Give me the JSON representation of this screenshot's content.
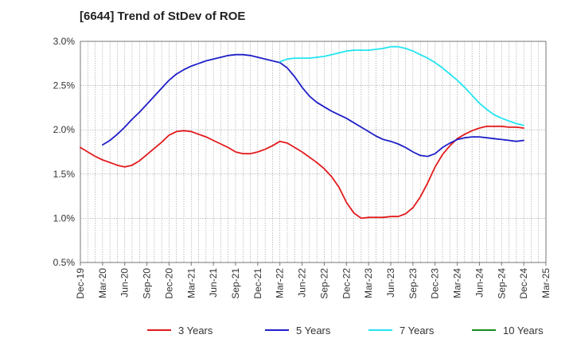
{
  "chart_data": {
    "type": "line",
    "title": "[6644]  Trend of StDev of ROE",
    "xlabel": "",
    "ylabel": "",
    "ylim": [
      0.005,
      0.03
    ],
    "y_ticks": [
      "0.5%",
      "1.0%",
      "1.5%",
      "2.0%",
      "2.5%",
      "3.0%"
    ],
    "x_range": [
      "Dec-19",
      "Mar-25"
    ],
    "x_ticks": [
      "Dec-19",
      "Mar-20",
      "Jun-20",
      "Sep-20",
      "Dec-20",
      "Mar-21",
      "Jun-21",
      "Sep-21",
      "Dec-21",
      "Mar-22",
      "Jun-22",
      "Sep-22",
      "Dec-22",
      "Mar-23",
      "Jun-23",
      "Sep-23",
      "Dec-23",
      "Mar-24",
      "Jun-24",
      "Sep-24",
      "Dec-24",
      "Mar-25"
    ],
    "grid": true,
    "legend_position": "bottom",
    "series": [
      {
        "name": "3 Years",
        "color": "#e31a1c",
        "points": [
          [
            "Dec-19",
            0.018
          ],
          [
            "Jan-20",
            0.0175
          ],
          [
            "Feb-20",
            0.017
          ],
          [
            "Mar-20",
            0.0166
          ],
          [
            "Apr-20",
            0.0163
          ],
          [
            "May-20",
            0.016
          ],
          [
            "Jun-20",
            0.0158
          ],
          [
            "Jul-20",
            0.016
          ],
          [
            "Aug-20",
            0.0165
          ],
          [
            "Sep-20",
            0.0172
          ],
          [
            "Oct-20",
            0.0179
          ],
          [
            "Nov-20",
            0.0186
          ],
          [
            "Dec-20",
            0.0194
          ],
          [
            "Jan-21",
            0.0198
          ],
          [
            "Feb-21",
            0.0199
          ],
          [
            "Mar-21",
            0.0198
          ],
          [
            "Apr-21",
            0.0195
          ],
          [
            "May-21",
            0.0192
          ],
          [
            "Jun-21",
            0.0188
          ],
          [
            "Jul-21",
            0.0184
          ],
          [
            "Aug-21",
            0.018
          ],
          [
            "Sep-21",
            0.0175
          ],
          [
            "Oct-21",
            0.0173
          ],
          [
            "Nov-21",
            0.0173
          ],
          [
            "Dec-21",
            0.0175
          ],
          [
            "Jan-22",
            0.0178
          ],
          [
            "Feb-22",
            0.0182
          ],
          [
            "Mar-22",
            0.0187
          ],
          [
            "Apr-22",
            0.0185
          ],
          [
            "May-22",
            0.018
          ],
          [
            "Jun-22",
            0.0175
          ],
          [
            "Jul-22",
            0.0169
          ],
          [
            "Aug-22",
            0.0163
          ],
          [
            "Sep-22",
            0.0156
          ],
          [
            "Oct-22",
            0.0147
          ],
          [
            "Nov-22",
            0.0135
          ],
          [
            "Dec-22",
            0.0118
          ],
          [
            "Jan-23",
            0.0106
          ],
          [
            "Feb-23",
            0.01
          ],
          [
            "Mar-23",
            0.0101
          ],
          [
            "Apr-23",
            0.0101
          ],
          [
            "May-23",
            0.0101
          ],
          [
            "Jun-23",
            0.0102
          ],
          [
            "Jul-23",
            0.0102
          ],
          [
            "Aug-23",
            0.0105
          ],
          [
            "Sep-23",
            0.0112
          ],
          [
            "Oct-23",
            0.0124
          ],
          [
            "Nov-23",
            0.014
          ],
          [
            "Dec-23",
            0.0158
          ],
          [
            "Jan-24",
            0.0172
          ],
          [
            "Feb-24",
            0.0182
          ],
          [
            "Mar-24",
            0.019
          ],
          [
            "Apr-24",
            0.0195
          ],
          [
            "May-24",
            0.0199
          ],
          [
            "Jun-24",
            0.0202
          ],
          [
            "Jul-24",
            0.0204
          ],
          [
            "Aug-24",
            0.0204
          ],
          [
            "Sep-24",
            0.0204
          ],
          [
            "Oct-24",
            0.0203
          ],
          [
            "Nov-24",
            0.0203
          ],
          [
            "Dec-24",
            0.0202
          ]
        ]
      },
      {
        "name": "5 Years",
        "color": "#1f1fc8",
        "points": [
          [
            "Mar-20",
            0.0183
          ],
          [
            "Apr-20",
            0.0188
          ],
          [
            "May-20",
            0.0195
          ],
          [
            "Jun-20",
            0.0203
          ],
          [
            "Jul-20",
            0.0212
          ],
          [
            "Aug-20",
            0.022
          ],
          [
            "Sep-20",
            0.0229
          ],
          [
            "Oct-20",
            0.0238
          ],
          [
            "Nov-20",
            0.0247
          ],
          [
            "Dec-20",
            0.0256
          ],
          [
            "Jan-21",
            0.0263
          ],
          [
            "Feb-21",
            0.0268
          ],
          [
            "Mar-21",
            0.0272
          ],
          [
            "Apr-21",
            0.0275
          ],
          [
            "May-21",
            0.0278
          ],
          [
            "Jun-21",
            0.028
          ],
          [
            "Jul-21",
            0.0282
          ],
          [
            "Aug-21",
            0.0284
          ],
          [
            "Sep-21",
            0.0285
          ],
          [
            "Oct-21",
            0.0285
          ],
          [
            "Nov-21",
            0.0284
          ],
          [
            "Dec-21",
            0.0282
          ],
          [
            "Jan-22",
            0.028
          ],
          [
            "Feb-22",
            0.0278
          ],
          [
            "Mar-22",
            0.0276
          ],
          [
            "Apr-22",
            0.027
          ],
          [
            "May-22",
            0.026
          ],
          [
            "Jun-22",
            0.0248
          ],
          [
            "Jul-22",
            0.0238
          ],
          [
            "Aug-22",
            0.0231
          ],
          [
            "Sep-22",
            0.0226
          ],
          [
            "Oct-22",
            0.0221
          ],
          [
            "Nov-22",
            0.0217
          ],
          [
            "Dec-22",
            0.0213
          ],
          [
            "Jan-23",
            0.0208
          ],
          [
            "Feb-23",
            0.0203
          ],
          [
            "Mar-23",
            0.0198
          ],
          [
            "Apr-23",
            0.0193
          ],
          [
            "May-23",
            0.0189
          ],
          [
            "Jun-23",
            0.0187
          ],
          [
            "Jul-23",
            0.0184
          ],
          [
            "Aug-23",
            0.018
          ],
          [
            "Sep-23",
            0.0175
          ],
          [
            "Oct-23",
            0.0171
          ],
          [
            "Nov-23",
            0.017
          ],
          [
            "Dec-23",
            0.0173
          ],
          [
            "Jan-24",
            0.018
          ],
          [
            "Feb-24",
            0.0185
          ],
          [
            "Mar-24",
            0.0189
          ],
          [
            "Apr-24",
            0.0191
          ],
          [
            "May-24",
            0.0192
          ],
          [
            "Jun-24",
            0.0192
          ],
          [
            "Jul-24",
            0.0191
          ],
          [
            "Aug-24",
            0.019
          ],
          [
            "Sep-24",
            0.0189
          ],
          [
            "Oct-24",
            0.0188
          ],
          [
            "Nov-24",
            0.0187
          ],
          [
            "Dec-24",
            0.0188
          ]
        ]
      },
      {
        "name": "7 Years",
        "color": "#22e5f0",
        "points": [
          [
            "Mar-22",
            0.0277
          ],
          [
            "Apr-22",
            0.028
          ],
          [
            "May-22",
            0.0281
          ],
          [
            "Jun-22",
            0.0281
          ],
          [
            "Jul-22",
            0.0281
          ],
          [
            "Aug-22",
            0.0282
          ],
          [
            "Sep-22",
            0.0283
          ],
          [
            "Oct-22",
            0.0285
          ],
          [
            "Nov-22",
            0.0287
          ],
          [
            "Dec-22",
            0.0289
          ],
          [
            "Jan-23",
            0.029
          ],
          [
            "Feb-23",
            0.029
          ],
          [
            "Mar-23",
            0.029
          ],
          [
            "Apr-23",
            0.0291
          ],
          [
            "May-23",
            0.0292
          ],
          [
            "Jun-23",
            0.0294
          ],
          [
            "Jul-23",
            0.0294
          ],
          [
            "Aug-23",
            0.0292
          ],
          [
            "Sep-23",
            0.0289
          ],
          [
            "Oct-23",
            0.0285
          ],
          [
            "Nov-23",
            0.0281
          ],
          [
            "Dec-23",
            0.0276
          ],
          [
            "Jan-24",
            0.027
          ],
          [
            "Feb-24",
            0.0263
          ],
          [
            "Mar-24",
            0.0256
          ],
          [
            "Apr-24",
            0.0248
          ],
          [
            "May-24",
            0.0239
          ],
          [
            "Jun-24",
            0.023
          ],
          [
            "Jul-24",
            0.0223
          ],
          [
            "Aug-24",
            0.0217
          ],
          [
            "Sep-24",
            0.0213
          ],
          [
            "Oct-24",
            0.021
          ],
          [
            "Nov-24",
            0.0207
          ],
          [
            "Dec-24",
            0.0205
          ]
        ]
      },
      {
        "name": "10 Years",
        "color": "#1a8a1a",
        "points": []
      }
    ]
  }
}
